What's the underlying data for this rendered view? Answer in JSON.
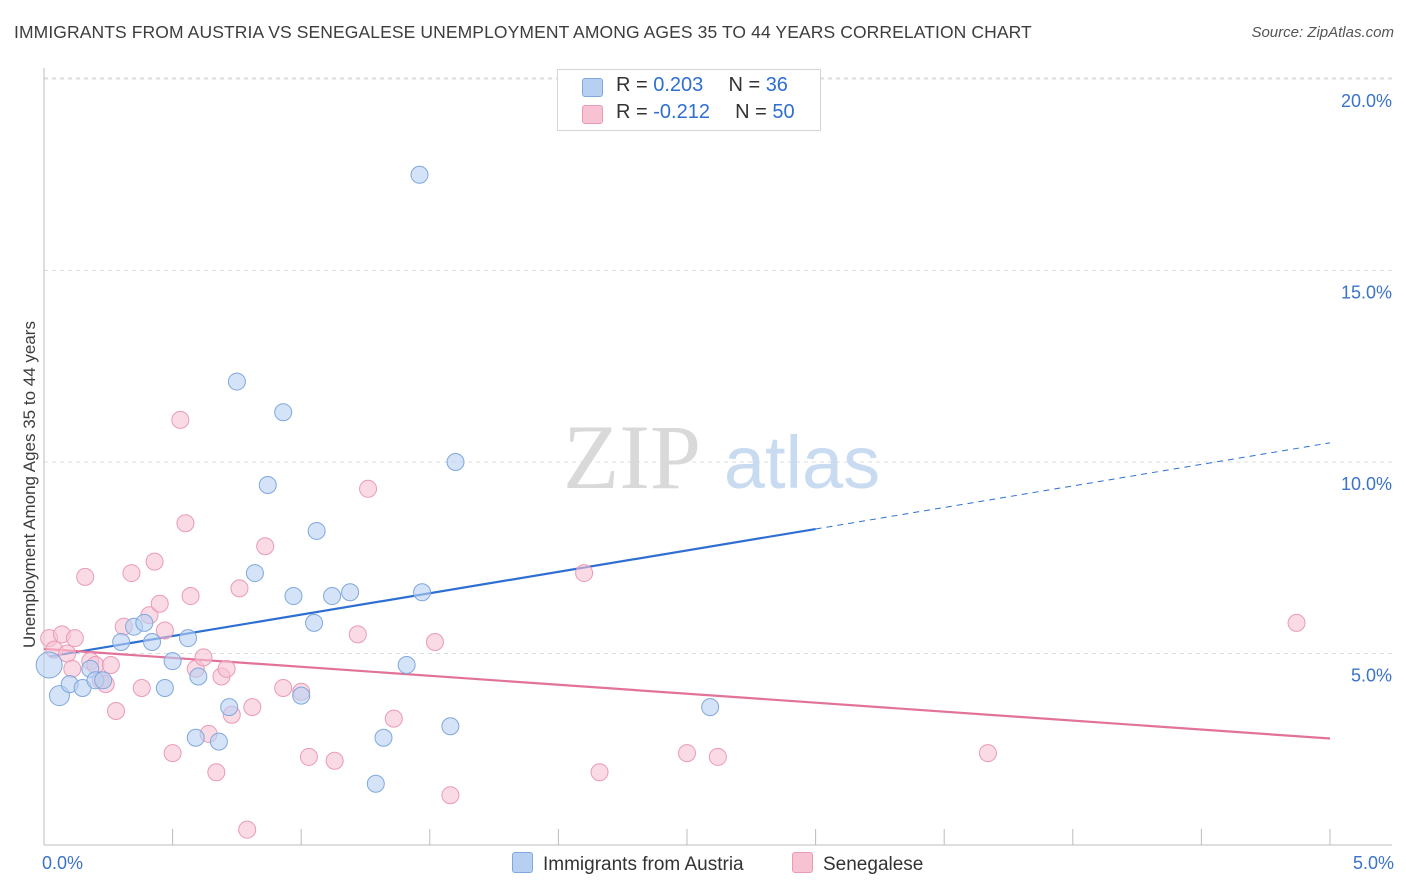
{
  "header": {
    "title": "IMMIGRANTS FROM AUSTRIA VS SENEGALESE UNEMPLOYMENT AMONG AGES 35 TO 44 YEARS CORRELATION CHART",
    "source": "Source: ZipAtlas.com"
  },
  "watermark": {
    "zip": "ZIP",
    "atlas": "atlas"
  },
  "legend_top": {
    "rows": [
      {
        "r_label": "R = ",
        "r_value": "0.203",
        "n_label": "N = ",
        "n_value": "36"
      },
      {
        "r_label": "R = ",
        "r_value": "-0.212",
        "n_label": "N = ",
        "n_value": "50"
      }
    ]
  },
  "legend_bottom": {
    "series1": "Immigrants from Austria",
    "series2": "Senegalese"
  },
  "colors": {
    "blue_fill": "#b7d0f2",
    "blue_stroke": "#7fa8dd",
    "blue_line": "#2e6fd2",
    "pink_fill": "#f7c3d3",
    "pink_stroke": "#eb9ab6",
    "pink_line": "#e2729a",
    "axis_text": "#3b73c9"
  },
  "chart_data": {
    "type": "scatter",
    "title": "IMMIGRANTS FROM AUSTRIA VS SENEGALESE UNEMPLOYMENT AMONG AGES 35 TO 44 YEARS CORRELATION CHART",
    "xlabel": "",
    "ylabel": "Unemployment Among Ages 35 to 44 years",
    "xlim": [
      0,
      5
    ],
    "ylim": [
      0,
      20.5
    ],
    "x_tick_labels": [
      "0.0%",
      "5.0%"
    ],
    "y_ticks": [
      5,
      10,
      15,
      20
    ],
    "y_tick_labels": [
      "5.0%",
      "10.0%",
      "15.0%",
      "20.0%"
    ],
    "grid": true,
    "series": [
      {
        "name": "Immigrants from Austria",
        "r": 0.203,
        "n": 36,
        "points": [
          [
            0.02,
            4.7
          ],
          [
            0.06,
            3.9
          ],
          [
            0.1,
            4.2
          ],
          [
            0.15,
            4.1
          ],
          [
            0.18,
            4.6
          ],
          [
            0.2,
            4.3
          ],
          [
            0.23,
            4.3
          ],
          [
            0.3,
            5.3
          ],
          [
            0.35,
            5.7
          ],
          [
            0.39,
            5.8
          ],
          [
            0.42,
            5.3
          ],
          [
            0.47,
            4.1
          ],
          [
            0.5,
            4.8
          ],
          [
            0.56,
            5.4
          ],
          [
            0.6,
            4.4
          ],
          [
            0.59,
            2.8
          ],
          [
            0.68,
            2.7
          ],
          [
            0.72,
            3.6
          ],
          [
            0.75,
            12.1
          ],
          [
            0.82,
            7.1
          ],
          [
            0.87,
            9.4
          ],
          [
            0.93,
            11.3
          ],
          [
            0.97,
            6.5
          ],
          [
            1.0,
            3.9
          ],
          [
            1.05,
            5.8
          ],
          [
            1.06,
            8.2
          ],
          [
            1.12,
            6.5
          ],
          [
            1.19,
            6.6
          ],
          [
            1.29,
            1.6
          ],
          [
            1.32,
            2.8
          ],
          [
            1.41,
            4.7
          ],
          [
            1.46,
            17.5
          ],
          [
            1.47,
            6.6
          ],
          [
            1.58,
            3.1
          ],
          [
            1.6,
            10.0
          ],
          [
            2.59,
            3.6
          ]
        ],
        "trend": {
          "x": [
            0.02,
            3.0
          ],
          "y": [
            4.92,
            8.25
          ]
        },
        "trend_dashed": {
          "x": [
            3.0,
            5.0
          ],
          "y": [
            8.25,
            10.5
          ]
        }
      },
      {
        "name": "Senegalese",
        "r": -0.212,
        "n": 50,
        "points": [
          [
            0.02,
            5.4
          ],
          [
            0.04,
            5.1
          ],
          [
            0.07,
            5.5
          ],
          [
            0.09,
            5.0
          ],
          [
            0.11,
            4.6
          ],
          [
            0.12,
            5.4
          ],
          [
            0.16,
            7.0
          ],
          [
            0.18,
            4.8
          ],
          [
            0.2,
            4.7
          ],
          [
            0.22,
            4.3
          ],
          [
            0.24,
            4.2
          ],
          [
            0.26,
            4.7
          ],
          [
            0.28,
            3.5
          ],
          [
            0.31,
            5.7
          ],
          [
            0.34,
            7.1
          ],
          [
            0.38,
            4.1
          ],
          [
            0.41,
            6.0
          ],
          [
            0.43,
            7.4
          ],
          [
            0.45,
            6.3
          ],
          [
            0.47,
            5.6
          ],
          [
            0.5,
            2.4
          ],
          [
            0.53,
            11.1
          ],
          [
            0.55,
            8.4
          ],
          [
            0.57,
            6.5
          ],
          [
            0.59,
            4.6
          ],
          [
            0.62,
            4.9
          ],
          [
            0.64,
            2.9
          ],
          [
            0.67,
            1.9
          ],
          [
            0.69,
            4.4
          ],
          [
            0.71,
            4.6
          ],
          [
            0.73,
            3.4
          ],
          [
            0.76,
            6.7
          ],
          [
            0.79,
            0.4
          ],
          [
            0.81,
            3.6
          ],
          [
            0.86,
            7.8
          ],
          [
            0.93,
            4.1
          ],
          [
            1.0,
            4.0
          ],
          [
            1.03,
            2.3
          ],
          [
            1.13,
            2.2
          ],
          [
            1.22,
            5.5
          ],
          [
            1.26,
            9.3
          ],
          [
            1.36,
            3.3
          ],
          [
            1.52,
            5.3
          ],
          [
            1.58,
            1.3
          ],
          [
            2.1,
            7.1
          ],
          [
            2.16,
            1.9
          ],
          [
            2.5,
            2.4
          ],
          [
            2.62,
            2.3
          ],
          [
            3.67,
            2.4
          ],
          [
            4.87,
            5.8
          ]
        ],
        "trend": {
          "x": [
            0.0,
            5.0
          ],
          "y": [
            5.12,
            2.78
          ]
        }
      }
    ]
  }
}
